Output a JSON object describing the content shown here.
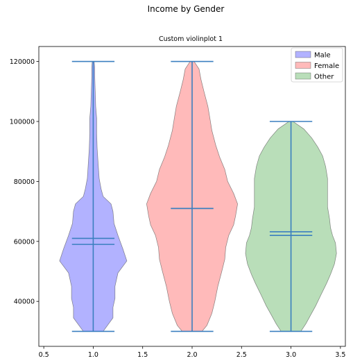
{
  "chart_data": {
    "type": "violin",
    "suptitle": "Income by Gender",
    "title": "Custom violinplot 1",
    "xlabel": "",
    "ylabel": "",
    "xlim": [
      0.45,
      3.55
    ],
    "ylim": [
      25000,
      125000
    ],
    "xticks": [
      0.5,
      1.0,
      1.5,
      2.0,
      2.5,
      3.0,
      3.5
    ],
    "xtick_labels": [
      "0.5",
      "1.0",
      "1.5",
      "2.0",
      "2.5",
      "3.0",
      "3.5"
    ],
    "yticks": [
      40000,
      60000,
      80000,
      100000,
      120000
    ],
    "ytick_labels": [
      "40000",
      "60000",
      "80000",
      "100000",
      "120000"
    ],
    "legend_position": "top-right",
    "line_color": "#3a7fbf",
    "series": [
      {
        "name": "Male",
        "position": 1.0,
        "color": "#6b6bff",
        "min": 30000,
        "max": 120000,
        "mean": 61000,
        "median": 59000,
        "profile": [
          [
            30000,
            0.1
          ],
          [
            34500,
            0.2
          ],
          [
            38000,
            0.2
          ],
          [
            41000,
            0.22
          ],
          [
            45000,
            0.22
          ],
          [
            49500,
            0.25
          ],
          [
            53500,
            0.34
          ],
          [
            57500,
            0.3
          ],
          [
            62000,
            0.25
          ],
          [
            66000,
            0.21
          ],
          [
            70000,
            0.2
          ],
          [
            72500,
            0.18
          ],
          [
            75000,
            0.1
          ],
          [
            77500,
            0.08
          ],
          [
            81000,
            0.06
          ],
          [
            86000,
            0.05
          ],
          [
            91000,
            0.04
          ],
          [
            96000,
            0.035
          ],
          [
            101000,
            0.035
          ],
          [
            105000,
            0.025
          ],
          [
            110000,
            0.02
          ],
          [
            115000,
            0.015
          ],
          [
            118000,
            0.015
          ],
          [
            120000,
            0.01
          ]
        ]
      },
      {
        "name": "Female",
        "position": 2.0,
        "color": "#ff7b7b",
        "min": 30000,
        "max": 120000,
        "mean": 71000,
        "median": 71000,
        "profile": [
          [
            30000,
            0.1
          ],
          [
            32000,
            0.15
          ],
          [
            36000,
            0.2
          ],
          [
            40000,
            0.23
          ],
          [
            45000,
            0.26
          ],
          [
            50000,
            0.3
          ],
          [
            54000,
            0.33
          ],
          [
            58000,
            0.34
          ],
          [
            62000,
            0.37
          ],
          [
            65500,
            0.42
          ],
          [
            68500,
            0.44
          ],
          [
            72500,
            0.46
          ],
          [
            76000,
            0.42
          ],
          [
            80000,
            0.36
          ],
          [
            84000,
            0.33
          ],
          [
            88000,
            0.28
          ],
          [
            92000,
            0.24
          ],
          [
            97000,
            0.2
          ],
          [
            101000,
            0.18
          ],
          [
            105000,
            0.16
          ],
          [
            110000,
            0.12
          ],
          [
            114000,
            0.09
          ],
          [
            117500,
            0.07
          ],
          [
            120000,
            0.02
          ]
        ]
      },
      {
        "name": "Other",
        "position": 3.0,
        "color": "#79c079",
        "min": 30000,
        "max": 100000,
        "mean": 63200,
        "median": 62000,
        "profile": [
          [
            30000,
            0.1
          ],
          [
            32500,
            0.15
          ],
          [
            35500,
            0.2
          ],
          [
            38500,
            0.25
          ],
          [
            42000,
            0.3
          ],
          [
            46000,
            0.36
          ],
          [
            49000,
            0.4
          ],
          [
            52500,
            0.44
          ],
          [
            56000,
            0.46
          ],
          [
            59500,
            0.45
          ],
          [
            62000,
            0.42
          ],
          [
            64500,
            0.4
          ],
          [
            67500,
            0.39
          ],
          [
            71500,
            0.37
          ],
          [
            76500,
            0.37
          ],
          [
            81000,
            0.37
          ],
          [
            85000,
            0.35
          ],
          [
            88500,
            0.32
          ],
          [
            91500,
            0.27
          ],
          [
            94500,
            0.21
          ],
          [
            97500,
            0.13
          ],
          [
            100000,
            0.02
          ]
        ]
      }
    ]
  }
}
